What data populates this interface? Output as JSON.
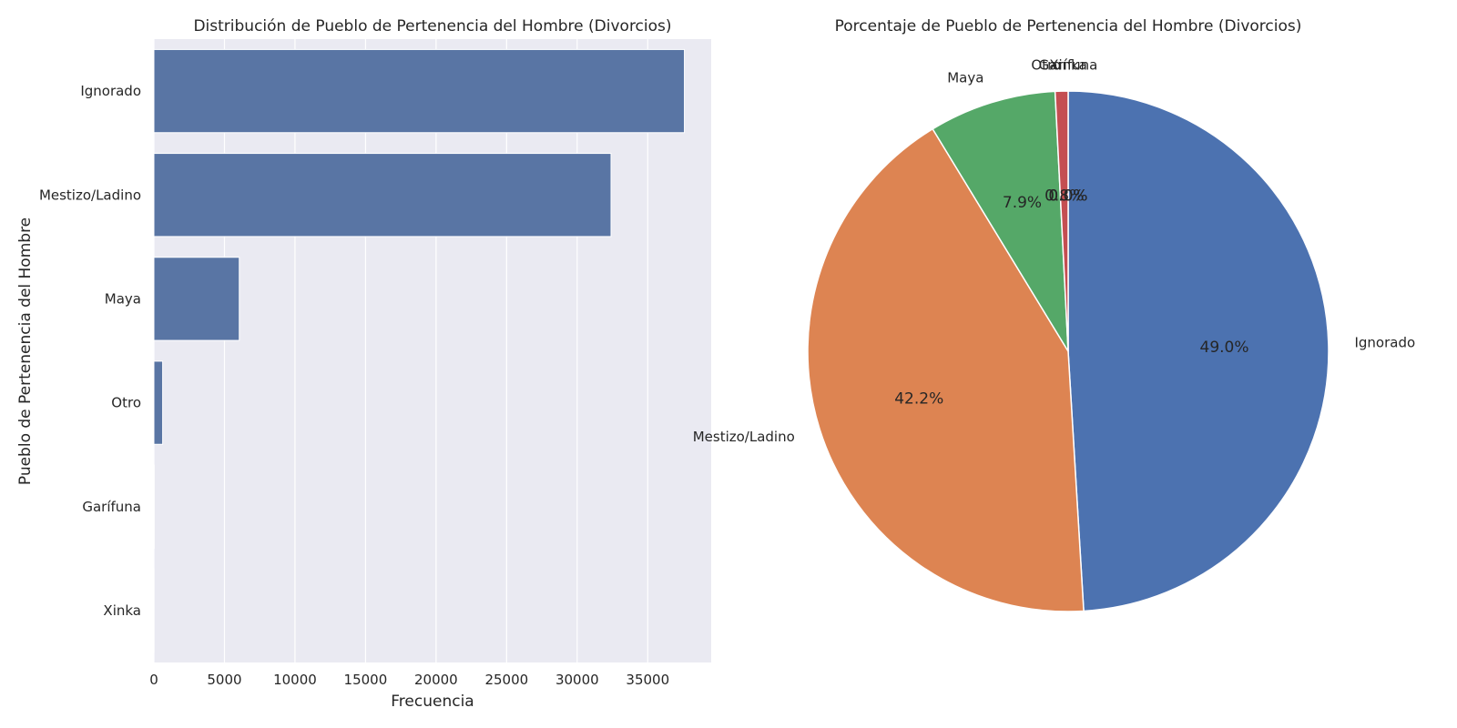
{
  "figure_bg": "#ffffff",
  "axes_bg": "#eaeaf2",
  "grid_color": "#ffffff",
  "chart_data": [
    {
      "type": "bar",
      "orientation": "horizontal",
      "title": "Distribución de Pueblo de Pertenencia del Hombre (Divorcios)",
      "xlabel": "Frecuencia",
      "ylabel": "Pueblo de Pertenencia del Hombre",
      "categories": [
        "Ignorado",
        "Mestizo/Ladino",
        "Maya",
        "Otro",
        "Garífuna",
        "Xinka"
      ],
      "values": [
        37600,
        32400,
        6050,
        620,
        20,
        8
      ],
      "xlim": [
        0,
        39500
      ],
      "xticks": [
        0,
        5000,
        10000,
        15000,
        20000,
        25000,
        30000,
        35000
      ],
      "grid": true,
      "bar_color": "#5975a4"
    },
    {
      "type": "pie",
      "title": "Porcentaje de Pueblo de Pertenencia del Hombre (Divorcios)",
      "labels": [
        "Ignorado",
        "Mestizo/Ladino",
        "Maya",
        "Otro",
        "Garífuna",
        "Xinka"
      ],
      "percentages": [
        49.0,
        42.2,
        7.9,
        0.8,
        0.0,
        0.0
      ],
      "pct_labels": [
        "49.0%",
        "42.2%",
        "7.9%",
        "0.8%",
        "0.0%",
        "0.0%"
      ],
      "colors": [
        "#4c72b0",
        "#dd8452",
        "#55a868",
        "#c44e52",
        "#8172b3",
        "#937860"
      ],
      "start_angle_deg": 90,
      "direction": "clockwise"
    }
  ]
}
